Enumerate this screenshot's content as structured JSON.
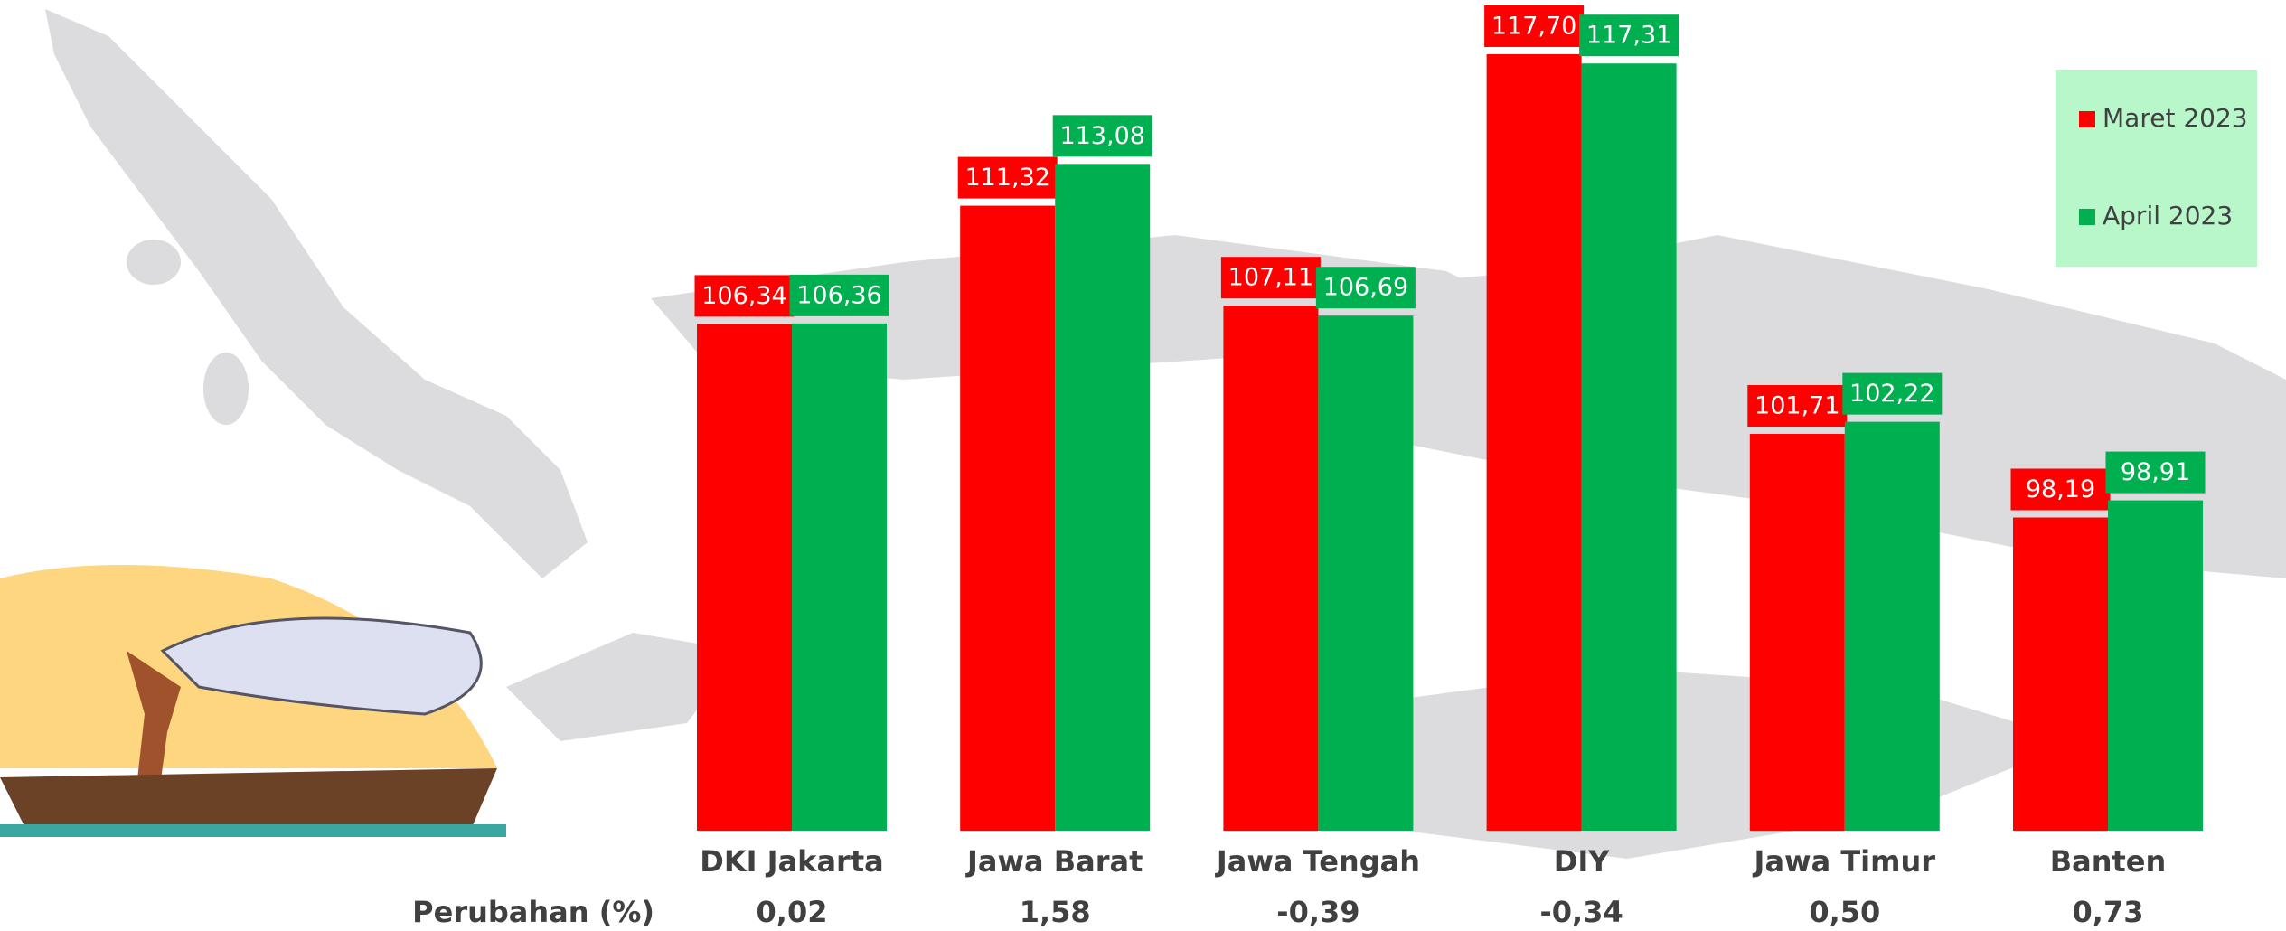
{
  "chart_data": {
    "type": "bar",
    "categories": [
      "DKI Jakarta",
      "Jawa Barat",
      "Jawa Tengah",
      "DIY",
      "Jawa Timur",
      "Banten"
    ],
    "series": [
      {
        "name": "Maret 2023",
        "color": "#ff0000",
        "values": [
          106.34,
          111.32,
          107.11,
          117.7,
          101.71,
          98.19
        ],
        "value_labels": [
          "106,34",
          "111,32",
          "107,11",
          "117,70",
          "101,71",
          "98,19"
        ]
      },
      {
        "name": "April 2023",
        "color": "#00b050",
        "values": [
          106.36,
          113.08,
          106.69,
          117.31,
          102.22,
          98.91
        ],
        "value_labels": [
          "106,36",
          "113,08",
          "106,69",
          "117,31",
          "102,22",
          "98,91"
        ]
      }
    ],
    "ylim": [
      85,
      120
    ],
    "legend": "top-right",
    "changes": {
      "label": "Perubahan (%)",
      "values": [
        0.02,
        1.58,
        -0.39,
        -0.34,
        0.5,
        0.73
      ],
      "value_labels": [
        "0,02",
        "1,58",
        "-0,39",
        "-0,34",
        "0,50",
        "0,73"
      ]
    }
  }
}
